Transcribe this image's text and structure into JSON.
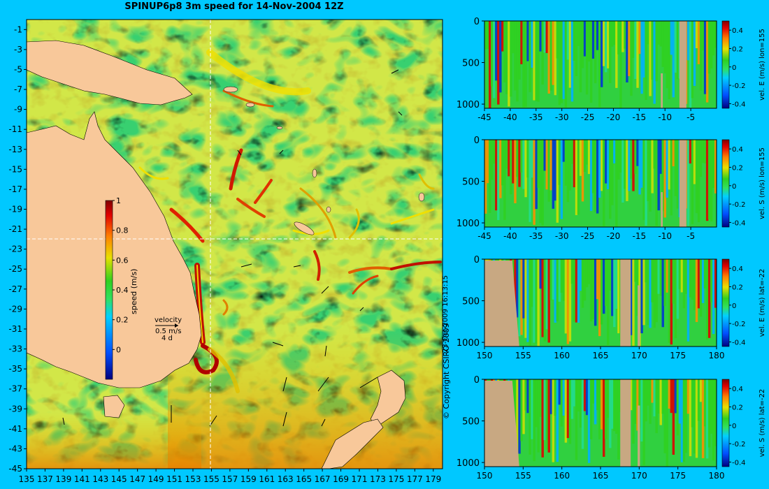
{
  "title": "SPINUP6p8 3m speed for 14-Nov-2004 12Z",
  "copyright": "© Copyright CSIRO 2009",
  "timestamp": "23-Oct-2009 16:13:15",
  "colors": {
    "background": "#00c8ff",
    "land": "#f8c89a",
    "section_land": "#c8a882",
    "crosshair": "#ffffff"
  },
  "chart_data": [
    {
      "type": "heatmap",
      "title": "SPINUP6p8 3m speed for 14-Nov-2004 12Z",
      "xlabel": "",
      "ylabel": "",
      "x_ticks": [
        "135",
        "137",
        "139",
        "141",
        "143",
        "145",
        "147",
        "149",
        "151",
        "153",
        "155",
        "157",
        "159",
        "161",
        "163",
        "165",
        "167",
        "169",
        "171",
        "173",
        "175",
        "177",
        "179"
      ],
      "y_ticks": [
        "-1",
        "-3",
        "-5",
        "-7",
        "-9",
        "-11",
        "-13",
        "-15",
        "-17",
        "-19",
        "-21",
        "-23",
        "-25",
        "-27",
        "-29",
        "-31",
        "-33",
        "-35",
        "-37",
        "-39",
        "-41",
        "-43",
        "-45"
      ],
      "xlim": [
        135,
        180
      ],
      "ylim": [
        -45,
        0
      ],
      "colorbar": {
        "label": "speed (m/s)",
        "ticks": [
          "0",
          "0.2",
          "0.4",
          "0.6",
          "0.8",
          "1"
        ],
        "range": [
          -0.2,
          1
        ]
      },
      "crosshair": {
        "lon": 155,
        "lat": -22
      },
      "velocity_key": {
        "title": "velocity",
        "speed": "0.5 m/s",
        "duration": "4 d"
      }
    },
    {
      "type": "heatmap",
      "colorbar_label": "vel. E (m/s) lon=155",
      "x_ticks": [
        "-45",
        "-40",
        "-35",
        "-30",
        "-25",
        "-20",
        "-15",
        "-10",
        "-5"
      ],
      "x_range": [
        -45,
        0
      ],
      "y_ticks": [
        "0",
        "500",
        "1000"
      ],
      "y_range": [
        0,
        1050
      ],
      "colorbar_ticks": [
        "0.4",
        "0.2",
        "0",
        "-0.2",
        "-0.4"
      ],
      "colorbar_range": [
        -0.45,
        0.5
      ]
    },
    {
      "type": "heatmap",
      "colorbar_label": "vel. S (m/s) lon=155",
      "x_ticks": [
        "-45",
        "-40",
        "-35",
        "-30",
        "-25",
        "-20",
        "-15",
        "-10",
        "-5"
      ],
      "x_range": [
        -45,
        0
      ],
      "y_ticks": [
        "0",
        "500",
        "1000"
      ],
      "y_range": [
        0,
        1050
      ],
      "colorbar_ticks": [
        "0.4",
        "0.2",
        "0",
        "-0.2",
        "-0.4"
      ],
      "colorbar_range": [
        -0.45,
        0.5
      ]
    },
    {
      "type": "heatmap",
      "colorbar_label": "vel. E (m/s) lat=-22",
      "x_ticks": [
        "150",
        "155",
        "160",
        "165",
        "170",
        "175",
        "180"
      ],
      "x_range": [
        150,
        180
      ],
      "y_ticks": [
        "0",
        "500",
        "1000"
      ],
      "y_range": [
        0,
        1050
      ],
      "colorbar_ticks": [
        "0.4",
        "0.2",
        "0",
        "-0.2",
        "-0.4"
      ],
      "colorbar_range": [
        -0.45,
        0.5
      ]
    },
    {
      "type": "heatmap",
      "colorbar_label": "vel. S (m/s) lat=-22",
      "x_ticks": [
        "150",
        "155",
        "160",
        "165",
        "170",
        "175",
        "180"
      ],
      "x_range": [
        150,
        180
      ],
      "y_ticks": [
        "0",
        "500",
        "1000"
      ],
      "y_range": [
        0,
        1050
      ],
      "colorbar_ticks": [
        "0.4",
        "0.2",
        "0",
        "-0.2",
        "-0.4"
      ],
      "colorbar_range": [
        -0.45,
        0.5
      ]
    }
  ]
}
